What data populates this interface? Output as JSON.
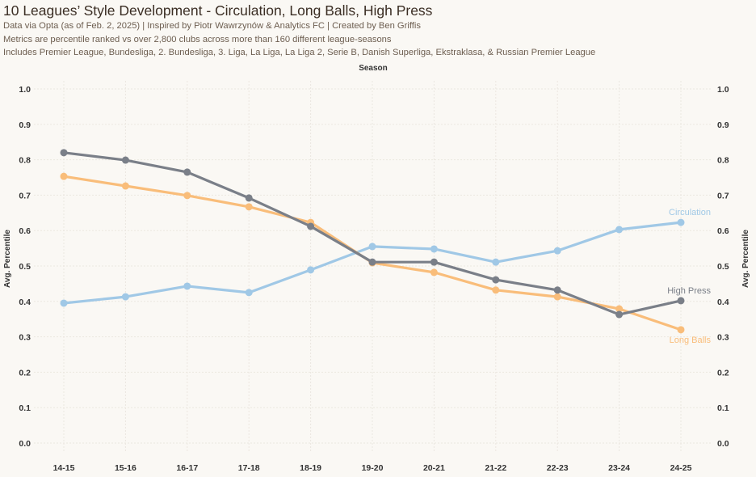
{
  "header": {
    "title": "10 Leagues’ Style Development - Circulation, Long Balls, High Press",
    "subtitle_1": "Data via Opta (as of Feb. 2, 2025) | Inspired by Piotr Wawrzynów & Analytics FC | Created by Ben Griffis",
    "subtitle_2": "Metrics are percentile ranked vs over 2,800 clubs across more than 160 different league-seasons",
    "subtitle_3": "Includes Premier League, Bundesliga, 2. Bundesliga, 3. Liga, La Liga, La Liga 2, Serie B, Danish Superliga, Ekstraklasa, & Russian Premier League"
  },
  "chart_data": {
    "type": "line",
    "title": "10 Leagues’ Style Development - Circulation, Long Balls, High Press",
    "xlabel": "Season",
    "ylabel": "Avg. Percentile",
    "ylim": [
      0,
      1.0
    ],
    "yticks": [
      "0.0",
      "0.1",
      "0.2",
      "0.3",
      "0.4",
      "0.5",
      "0.6",
      "0.7",
      "0.8",
      "0.9",
      "1.0"
    ],
    "grid": true,
    "x": [
      "14-15",
      "15-16",
      "16-17",
      "17-18",
      "18-19",
      "19-20",
      "20-21",
      "21-22",
      "22-23",
      "23-24",
      "24-25"
    ],
    "series": [
      {
        "name": "Circulation",
        "color": "#a0c8e6",
        "values": [
          0.395,
          0.413,
          0.443,
          0.425,
          0.489,
          0.555,
          0.548,
          0.511,
          0.543,
          0.603,
          0.623
        ]
      },
      {
        "name": "Long Balls",
        "color": "#f9bd7a",
        "values": [
          0.753,
          0.726,
          0.699,
          0.667,
          0.623,
          0.509,
          0.482,
          0.432,
          0.413,
          0.379,
          0.32
        ]
      },
      {
        "name": "High Press",
        "color": "#7a7f88",
        "values": [
          0.82,
          0.799,
          0.765,
          0.692,
          0.612,
          0.511,
          0.511,
          0.461,
          0.432,
          0.363,
          0.402
        ]
      }
    ]
  }
}
